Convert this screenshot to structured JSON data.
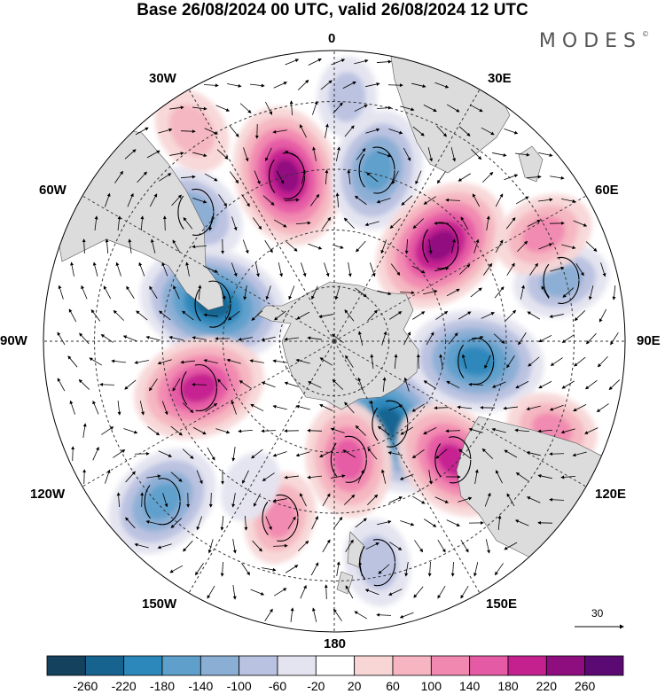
{
  "map": {
    "title": "Base 26/08/2024 00 UTC, valid 26/08/2024 12 UTC",
    "brand": "MODES",
    "brand_mark": "©",
    "longitude_labels": {
      "top": "0",
      "top_left": "30W",
      "top_right": "30E",
      "upper_left": "60W",
      "upper_right": "60E",
      "left": "90W",
      "right": "90E",
      "lower_left": "120W",
      "lower_right": "120E",
      "bottom_left": "150W",
      "bottom_right": "150E",
      "bottom": "180"
    },
    "vector_reference": "30",
    "projection": "south-polar-stereographic",
    "colors": {
      "background": "#ffffff",
      "land": "#dcdcdc",
      "graticule": "#333333"
    }
  },
  "colorbar": {
    "ticks": [
      "-260",
      "-220",
      "-180",
      "-140",
      "-100",
      "-60",
      "-20",
      "20",
      "60",
      "100",
      "140",
      "180",
      "220",
      "260"
    ],
    "colors": [
      "#14415e",
      "#17638f",
      "#2c87bb",
      "#5f9fcb",
      "#8aaed4",
      "#b9c2e0",
      "#e4e4f0",
      "#ffffff",
      "#f8d6d6",
      "#f6b5c0",
      "#f188b0",
      "#e55aa4",
      "#c4218f",
      "#8e0e80",
      "#5c0a73"
    ]
  },
  "anomalies": [
    {
      "lon": -47,
      "lat": -41,
      "value": -120
    },
    {
      "lon": -16,
      "lat": -45,
      "value": 210
    },
    {
      "lon": 14,
      "lat": -44,
      "value": -160
    },
    {
      "lon": 48,
      "lat": -52,
      "value": 220
    },
    {
      "lon": 75,
      "lat": -31,
      "value": -100
    },
    {
      "lon": -73,
      "lat": -56,
      "value": -230
    },
    {
      "lon": 98,
      "lat": -52,
      "value": -200
    },
    {
      "lon": -109,
      "lat": -52,
      "value": 190
    },
    {
      "lon": 146,
      "lat": -63,
      "value": -230
    },
    {
      "lon": 173,
      "lat": -58,
      "value": 150
    },
    {
      "lon": 135,
      "lat": -46,
      "value": 180
    },
    {
      "lon": -133,
      "lat": -31,
      "value": -160
    },
    {
      "lon": 169,
      "lat": -33,
      "value": -80
    },
    {
      "lon": -163,
      "lat": -42,
      "value": 90
    },
    {
      "lon": -34,
      "lat": -27,
      "value": 80
    },
    {
      "lon": 63,
      "lat": -31,
      "value": 110
    },
    {
      "lon": 112,
      "lat": -31,
      "value": 90
    },
    {
      "lon": -150,
      "lat": -46,
      "value": -40
    },
    {
      "lon": 3,
      "lat": -29,
      "value": -60
    }
  ],
  "cyclonic_centers": [
    {
      "lon": -47,
      "lat": -41
    },
    {
      "lon": 14,
      "lat": -44
    },
    {
      "lon": -73,
      "lat": -56
    },
    {
      "lon": 98,
      "lat": -52
    },
    {
      "lon": 146,
      "lat": -63
    },
    {
      "lon": -133,
      "lat": -31
    },
    {
      "lon": 75,
      "lat": -31
    },
    {
      "lon": 169,
      "lat": -33
    }
  ],
  "anticyclonic_centers": [
    {
      "lon": -16,
      "lat": -45
    },
    {
      "lon": 48,
      "lat": -52
    },
    {
      "lon": -109,
      "lat": -52
    },
    {
      "lon": 173,
      "lat": -58
    },
    {
      "lon": 135,
      "lat": -46
    },
    {
      "lon": -163,
      "lat": -42
    }
  ]
}
